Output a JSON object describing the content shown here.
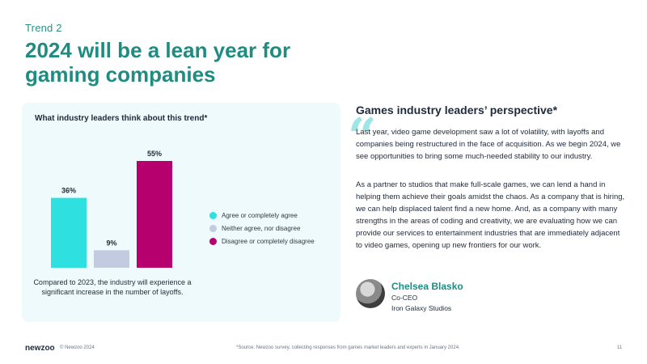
{
  "header": {
    "trend_label": "Trend 2",
    "headline": "2024 will be a lean year for gaming companies"
  },
  "chart_data": {
    "type": "bar",
    "title": "What industry leaders think about this trend*",
    "categories": [
      "Agree or completely agree",
      "Neither agree, nor disagree",
      "Disagree or completely disagree"
    ],
    "values": [
      36,
      9,
      55
    ],
    "value_labels": [
      "36%",
      "9%",
      "55%"
    ],
    "colors": [
      "#2ee0df",
      "#c2cbdf",
      "#b5006e"
    ],
    "ylim": [
      0,
      55
    ],
    "legend": [
      "Agree or completely agree",
      "Neither agree, nor disagree",
      "Disagree or completely disagree"
    ],
    "legend_position": "right",
    "caption": "Compared to 2023, the industry will experience a significant increase in the number of layoffs."
  },
  "perspective": {
    "title": "Games industry leaders’ perspective*",
    "quote_mark": "“",
    "paragraph1": "Last year, video game development saw a lot of volatility, with layoffs and companies being restructured in the face of acquisition. As we begin 2024, we see opportunities to bring some much-needed stability to our industry.",
    "paragraph2": "As a partner to studios that make full-scale games, we can lend a hand in helping them achieve their goals amidst the chaos. As a company that is hiring, we can help displaced talent find a new home. And, as a company with many strengths in the areas of coding and creativity, we are evaluating how we can provide our services to entertainment industries that are immediately adjacent to video games, opening up new frontiers for our work.",
    "person_name": "Chelsea Blasko",
    "person_role": "Co-CEO",
    "person_company": "Iron Galaxy Studios"
  },
  "footer": {
    "logo": "newzoo",
    "copyright": "© Newzoo 2024",
    "source": "*Source: Newzoo survey, collecting responses from games market leaders and experts in January 2024.",
    "page_number": "11"
  }
}
